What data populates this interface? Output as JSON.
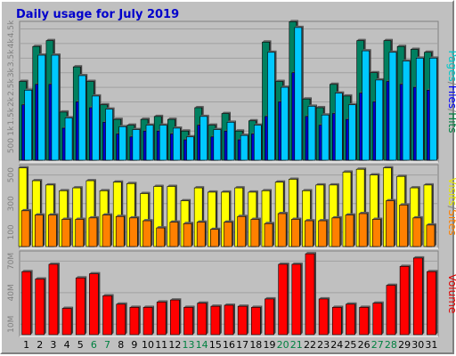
{
  "chart_data": {
    "type": "bar",
    "title": "Daily usage for July 2019",
    "categories": [
      "1",
      "2",
      "3",
      "4",
      "5",
      "6",
      "7",
      "8",
      "9",
      "10",
      "11",
      "12",
      "13",
      "14",
      "15",
      "16",
      "17",
      "18",
      "19",
      "20",
      "21",
      "22",
      "23",
      "24",
      "25",
      "26",
      "27",
      "28",
      "29",
      "30",
      "31"
    ],
    "weekend_days": [
      "6",
      "7",
      "13",
      "14",
      "20",
      "21",
      "27",
      "28"
    ],
    "panels": [
      {
        "name": "traffic",
        "ylim": [
          0,
          4700
        ],
        "yticks": [
          "500",
          "1k",
          "1.5k",
          "2k",
          "2.5k",
          "3k",
          "3.5k",
          "4k",
          "4.5k"
        ],
        "ytick_values": [
          500,
          1000,
          1500,
          2000,
          2500,
          3000,
          3500,
          4000,
          4500
        ],
        "axis_labels": [
          {
            "text": "Pages",
            "color": "#00c8c8"
          },
          {
            "text": "/",
            "color": "#808080"
          },
          {
            "text": "Files",
            "color": "#0000ff"
          },
          {
            "text": "/",
            "color": "#808080"
          },
          {
            "text": "Hits",
            "color": "#008040"
          }
        ],
        "series": [
          {
            "name": "Hits",
            "color": "#008060",
            "values": [
              2700,
              3900,
              4100,
              1650,
              3200,
              2700,
              1900,
              1400,
              1200,
              1400,
              1500,
              1400,
              1000,
              1800,
              1200,
              1600,
              1000,
              1350,
              4050,
              2700,
              4750,
              2100,
              1800,
              2600,
              2200,
              4100,
              3000,
              4100,
              3900,
              3800,
              3700
            ]
          },
          {
            "name": "Files",
            "color": "#0000cc",
            "values": [
              1900,
              2600,
              2600,
              1100,
              2000,
              1800,
              1300,
              900,
              800,
              1000,
              1000,
              900,
              700,
              1200,
              800,
              1000,
              700,
              900,
              1500,
              2000,
              3000,
              1500,
              1200,
              1600,
              1400,
              2300,
              2000,
              2700,
              2600,
              2500,
              2400
            ]
          },
          {
            "name": "Pages",
            "color": "#00c8ff",
            "values": [
              2400,
              3600,
              3600,
              1450,
              2900,
              2200,
              1750,
              1150,
              1050,
              1200,
              1200,
              1100,
              800,
              1500,
              1050,
              1300,
              850,
              1200,
              3700,
              2500,
              4550,
              1850,
              1550,
              2300,
              1900,
              3750,
              2750,
              3700,
              3400,
              3500,
              3500
            ]
          }
        ]
      },
      {
        "name": "visits",
        "ylim": [
          0,
          560
        ],
        "yticks": [
          "100",
          "300",
          "500"
        ],
        "ytick_values": [
          100,
          300,
          500
        ],
        "axis_labels": [
          {
            "text": "Visits",
            "color": "#e6e600"
          },
          {
            "text": "/",
            "color": "#808080"
          },
          {
            "text": "Sites",
            "color": "#ff8000"
          }
        ],
        "series": [
          {
            "name": "Visits",
            "color": "#ffff00",
            "values": [
              550,
              460,
              430,
              390,
              410,
              460,
              390,
              450,
              440,
              370,
              420,
              420,
              320,
              410,
              380,
              380,
              410,
              380,
              390,
              450,
              470,
              390,
              430,
              430,
              520,
              540,
              500,
              550,
              490,
              410,
              430
            ]
          },
          {
            "name": "Sites",
            "color": "#ff8000",
            "values": [
              250,
              220,
              220,
              190,
              190,
              200,
              220,
              210,
              200,
              180,
              130,
              170,
              160,
              170,
              120,
              170,
              210,
              190,
              160,
              230,
              190,
              180,
              180,
              200,
              220,
              230,
              190,
              320,
              290,
              200,
              150
            ]
          }
        ]
      },
      {
        "name": "volume",
        "ylim": [
          0,
          78
        ],
        "yticks": [
          "10M",
          "40M",
          "70M"
        ],
        "ytick_values": [
          10,
          40,
          70
        ],
        "axis_labels": [
          {
            "text": "Volume",
            "color": "#e00000"
          }
        ],
        "series": [
          {
            "name": "Volume",
            "color": "#ff0000",
            "values": [
              60,
              53,
              67,
              25,
              54,
              58,
              37,
              29,
              26,
              26,
              31,
              33,
              26,
              30,
              27,
              28,
              27,
              26,
              34,
              67,
              67,
              77,
              34,
              26,
              29,
              26,
              30,
              47,
              65,
              73,
              60
            ]
          }
        ]
      }
    ]
  }
}
